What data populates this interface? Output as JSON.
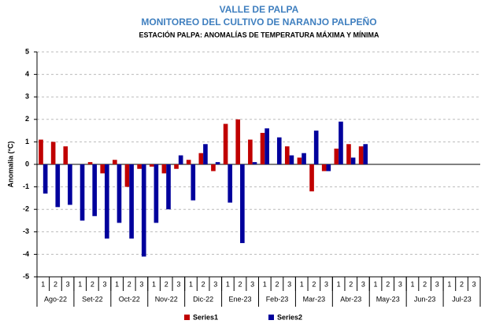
{
  "chart_data": {
    "type": "bar",
    "title": "VALLE DE PALPA",
    "subtitle": "MONITOREO DEL CULTIVO DE NARANJO PALPEÑO",
    "heading": "ESTACIÓN PALPA: ANOMALÍAS DE TEMPERATURA MÁXIMA Y MÍNIMA",
    "ylabel": "Anomalia (°C)",
    "categories": [
      "1",
      "2",
      "3",
      "1",
      "2",
      "3",
      "1",
      "2",
      "3",
      "1",
      "2",
      "3",
      "1",
      "2",
      "3",
      "1",
      "2",
      "3",
      "1",
      "2",
      "3",
      "1",
      "2",
      "3",
      "1",
      "2",
      "3",
      "1",
      "2",
      "3",
      "1",
      "2",
      "3",
      "1",
      "2",
      "3"
    ],
    "category_groups": [
      "Ago-22",
      "Set-22",
      "Oct-22",
      "Nov-22",
      "Dic-22",
      "Ene-23",
      "Feb-23",
      "Mar-23",
      "Abr-23",
      "May-23",
      "Jun-23",
      "Jul-23"
    ],
    "series": [
      {
        "name": "Series1",
        "color": "#c00000",
        "values": [
          1.1,
          1.0,
          0.8,
          0.0,
          0.1,
          -0.4,
          0.2,
          -1.0,
          -0.2,
          -0.1,
          -0.4,
          -0.2,
          0.2,
          0.5,
          -0.3,
          1.8,
          2.0,
          1.1,
          1.4,
          null,
          0.8,
          0.3,
          -1.2,
          -0.3,
          0.7,
          0.9,
          0.8,
          null,
          null,
          null,
          null,
          null,
          null,
          null,
          null,
          null
        ]
      },
      {
        "name": "Series2",
        "color": "#00009c",
        "values": [
          -1.3,
          -1.9,
          -1.8,
          -2.5,
          -2.3,
          -3.3,
          -2.6,
          -3.3,
          -4.1,
          -2.6,
          -2.0,
          0.4,
          -1.6,
          0.9,
          0.1,
          -1.7,
          -3.5,
          0.1,
          1.6,
          1.2,
          0.4,
          0.5,
          1.5,
          -0.3,
          1.9,
          0.3,
          0.9,
          null,
          null,
          null,
          null,
          null,
          null,
          null,
          null,
          null
        ]
      }
    ],
    "ylim": [
      -5,
      5
    ],
    "yticks": [
      -5,
      -4,
      -3,
      -2,
      -1,
      0,
      1,
      2,
      3,
      4,
      5
    ],
    "grid": true,
    "legend": "bottom"
  }
}
